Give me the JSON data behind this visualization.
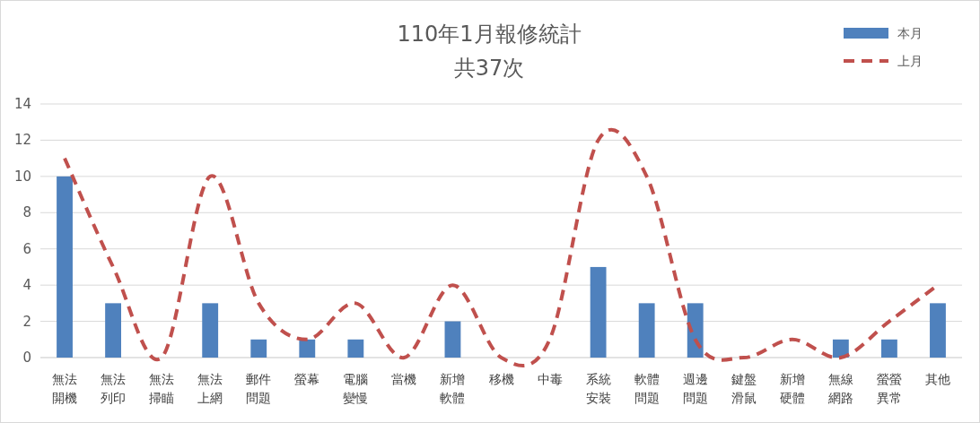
{
  "chart_data": {
    "type": "bar",
    "title": "110年1月報修統計",
    "subtitle": "共37次",
    "categories": [
      "無法開機",
      "無法列印",
      "無法掃瞄",
      "無法上網",
      "郵件問題",
      "螢幕",
      "電腦變慢",
      "當機",
      "新增軟體",
      "移機",
      "中毒",
      "系統安裝",
      "軟體問題",
      "週邊問題",
      "鍵盤滑鼠",
      "新增硬體",
      "無線網路",
      "螢螢異常",
      "其他"
    ],
    "series": [
      {
        "name": "本月",
        "color": "#4f81bd",
        "values": [
          10,
          3,
          0,
          3,
          1,
          1,
          1,
          0,
          2,
          0,
          0,
          5,
          3,
          3,
          0,
          0,
          1,
          1,
          3
        ]
      },
      {
        "name": "上月",
        "type": "line",
        "color": "#c0504d",
        "line_style": "dashed",
        "values": [
          11,
          5,
          0,
          10,
          3,
          1,
          3,
          0,
          4,
          0,
          1,
          12,
          10,
          1,
          0,
          1,
          0,
          2,
          4
        ]
      }
    ],
    "ylim": [
      0,
      14
    ],
    "yticks": [
      0,
      2,
      4,
      6,
      8,
      10,
      12,
      14
    ],
    "grid": "y",
    "legend": "top right"
  }
}
